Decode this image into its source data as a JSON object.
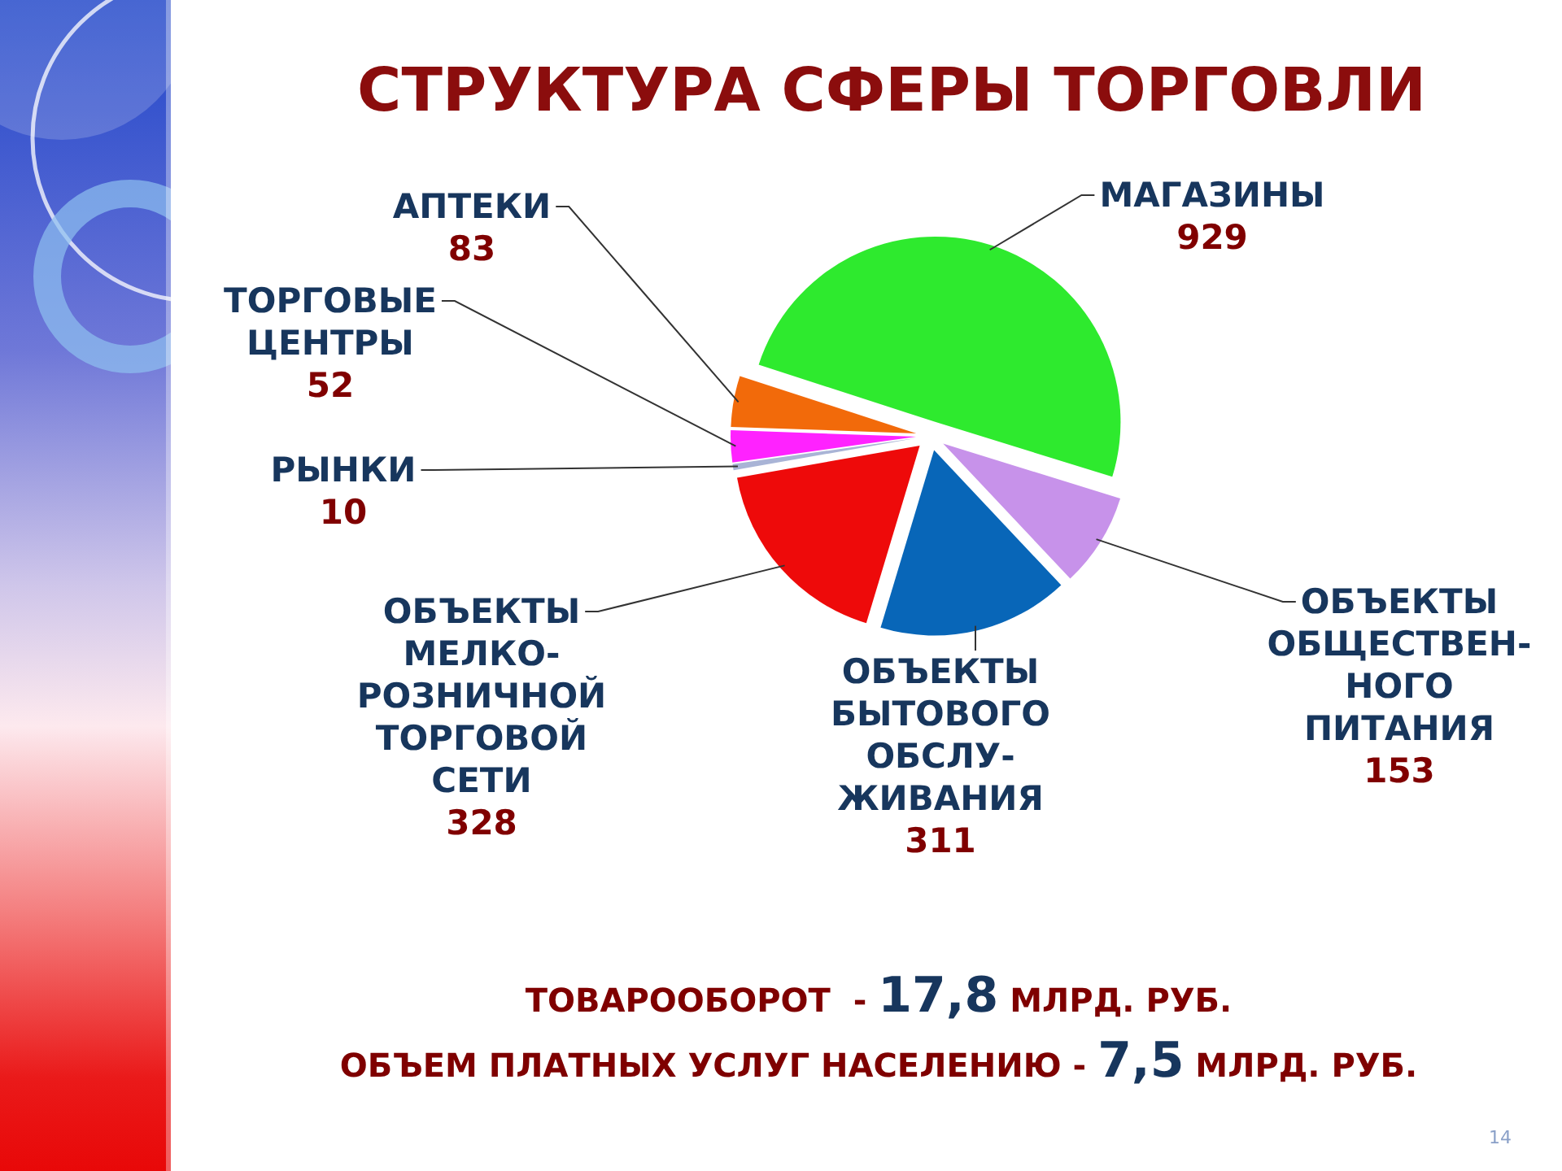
{
  "chart_data": {
    "type": "pie",
    "title": "СТРУКТУРА СФЕРЫ ТОРГОВЛИ",
    "categories": [
      "МАГАЗИНЫ",
      "ОБЪЕКТЫ\nОБЩЕСТВЕН-\nНОГО\nПИТАНИЯ",
      "ОБЪЕКТЫ\nБЫТОВОГО\nОБСЛУ-\nЖИВАНИЯ",
      "ОБЪЕКТЫ\nМЕЛКО-\nРОЗНИЧНОЙ\nТОРГОВОЙ\nСЕТИ",
      "РЫНКИ",
      "ТОРГОВЫЕ\nЦЕНТРЫ",
      "АПТЕКИ"
    ],
    "values": [
      929,
      153,
      311,
      328,
      10,
      52,
      83
    ],
    "colors": [
      "#2eea2e",
      "#c792ea",
      "#0866b8",
      "#ee0a0a",
      "#a9b4d6",
      "#ff22ff",
      "#f26a0a"
    ],
    "data_labels": true,
    "annotations": [
      "ТОВАРООБОРОТ  - 17,8 МЛРД. РУБ.",
      "ОБЪЕМ ПЛАТНЫХ УСЛУГ НАСЕЛЕНИЮ - 7,5 МЛРД. РУБ.",
      "14"
    ]
  }
}
